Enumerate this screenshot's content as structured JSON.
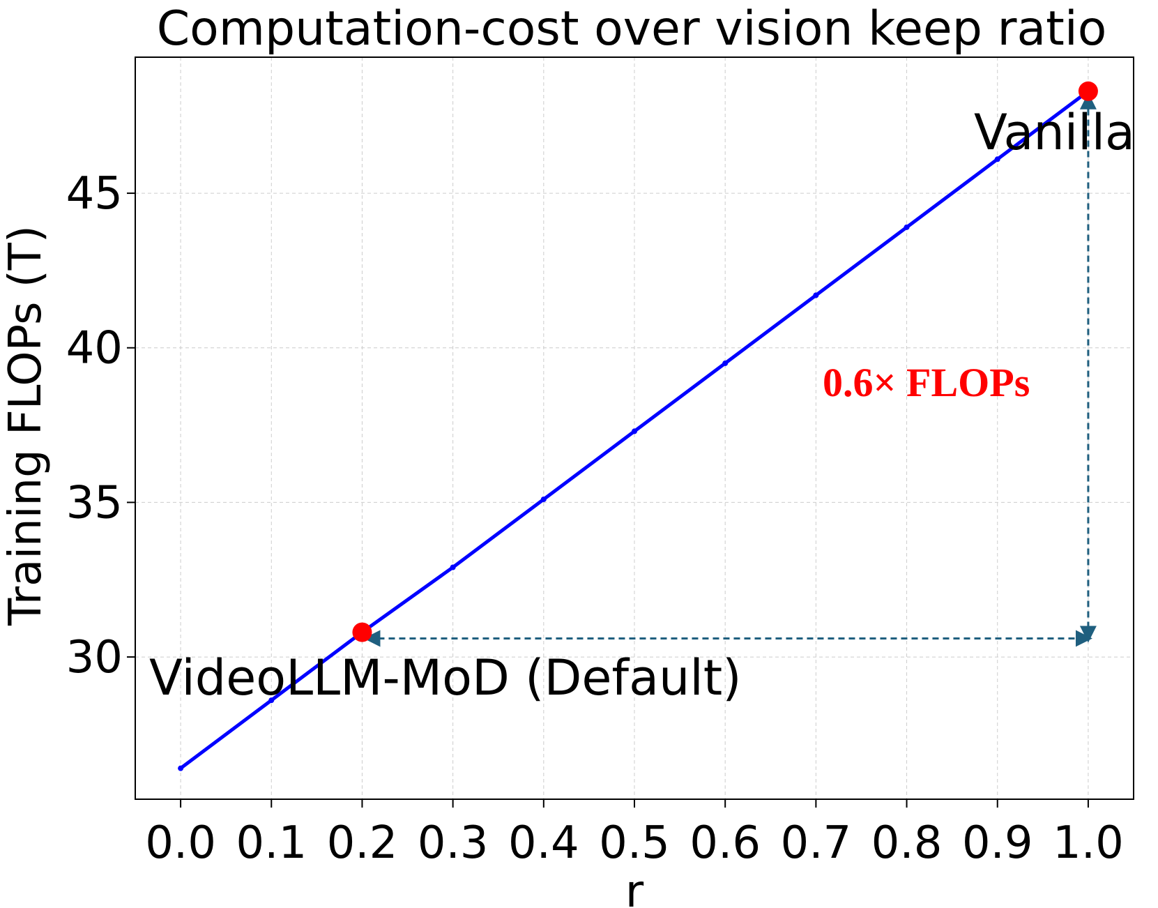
{
  "chart_data": {
    "type": "line",
    "title": "Computation-cost over vision keep ratio",
    "xlabel": "r",
    "ylabel": "Training FLOPs (T)",
    "x_ticks": [
      0.0,
      0.1,
      0.2,
      0.3,
      0.4,
      0.5,
      0.6,
      0.7,
      0.8,
      0.9,
      1.0
    ],
    "x_tick_labels": [
      "0.0",
      "0.1",
      "0.2",
      "0.3",
      "0.4",
      "0.5",
      "0.6",
      "0.7",
      "0.8",
      "0.9",
      "1.0"
    ],
    "y_ticks": [
      30,
      35,
      40,
      45
    ],
    "y_tick_labels": [
      "30",
      "35",
      "40",
      "45"
    ],
    "xlim": [
      -0.05,
      1.05
    ],
    "ylim": [
      25.4,
      49.4
    ],
    "grid": true,
    "series": [
      {
        "x": [
          0.0,
          0.1,
          0.2,
          0.3,
          0.4,
          0.5,
          0.6,
          0.7,
          0.8,
          0.9,
          1.0
        ],
        "y": [
          26.4,
          28.6,
          30.8,
          32.9,
          35.1,
          37.3,
          39.5,
          41.7,
          43.9,
          46.1,
          48.3
        ],
        "color": "#0000ff"
      }
    ],
    "highlights": [
      {
        "x": 0.2,
        "y": 30.8,
        "label": "VideoLLM-MoD (Default)",
        "color": "#ff0000"
      },
      {
        "x": 1.0,
        "y": 48.3,
        "label": "Vanilla",
        "color": "#ff0000"
      }
    ],
    "annotation": {
      "text": "0.6× FLOPs",
      "color": "#ff0000",
      "arrow_color": "#1f5f7f",
      "corner": {
        "x": 1.0,
        "y": 30.6
      }
    }
  }
}
